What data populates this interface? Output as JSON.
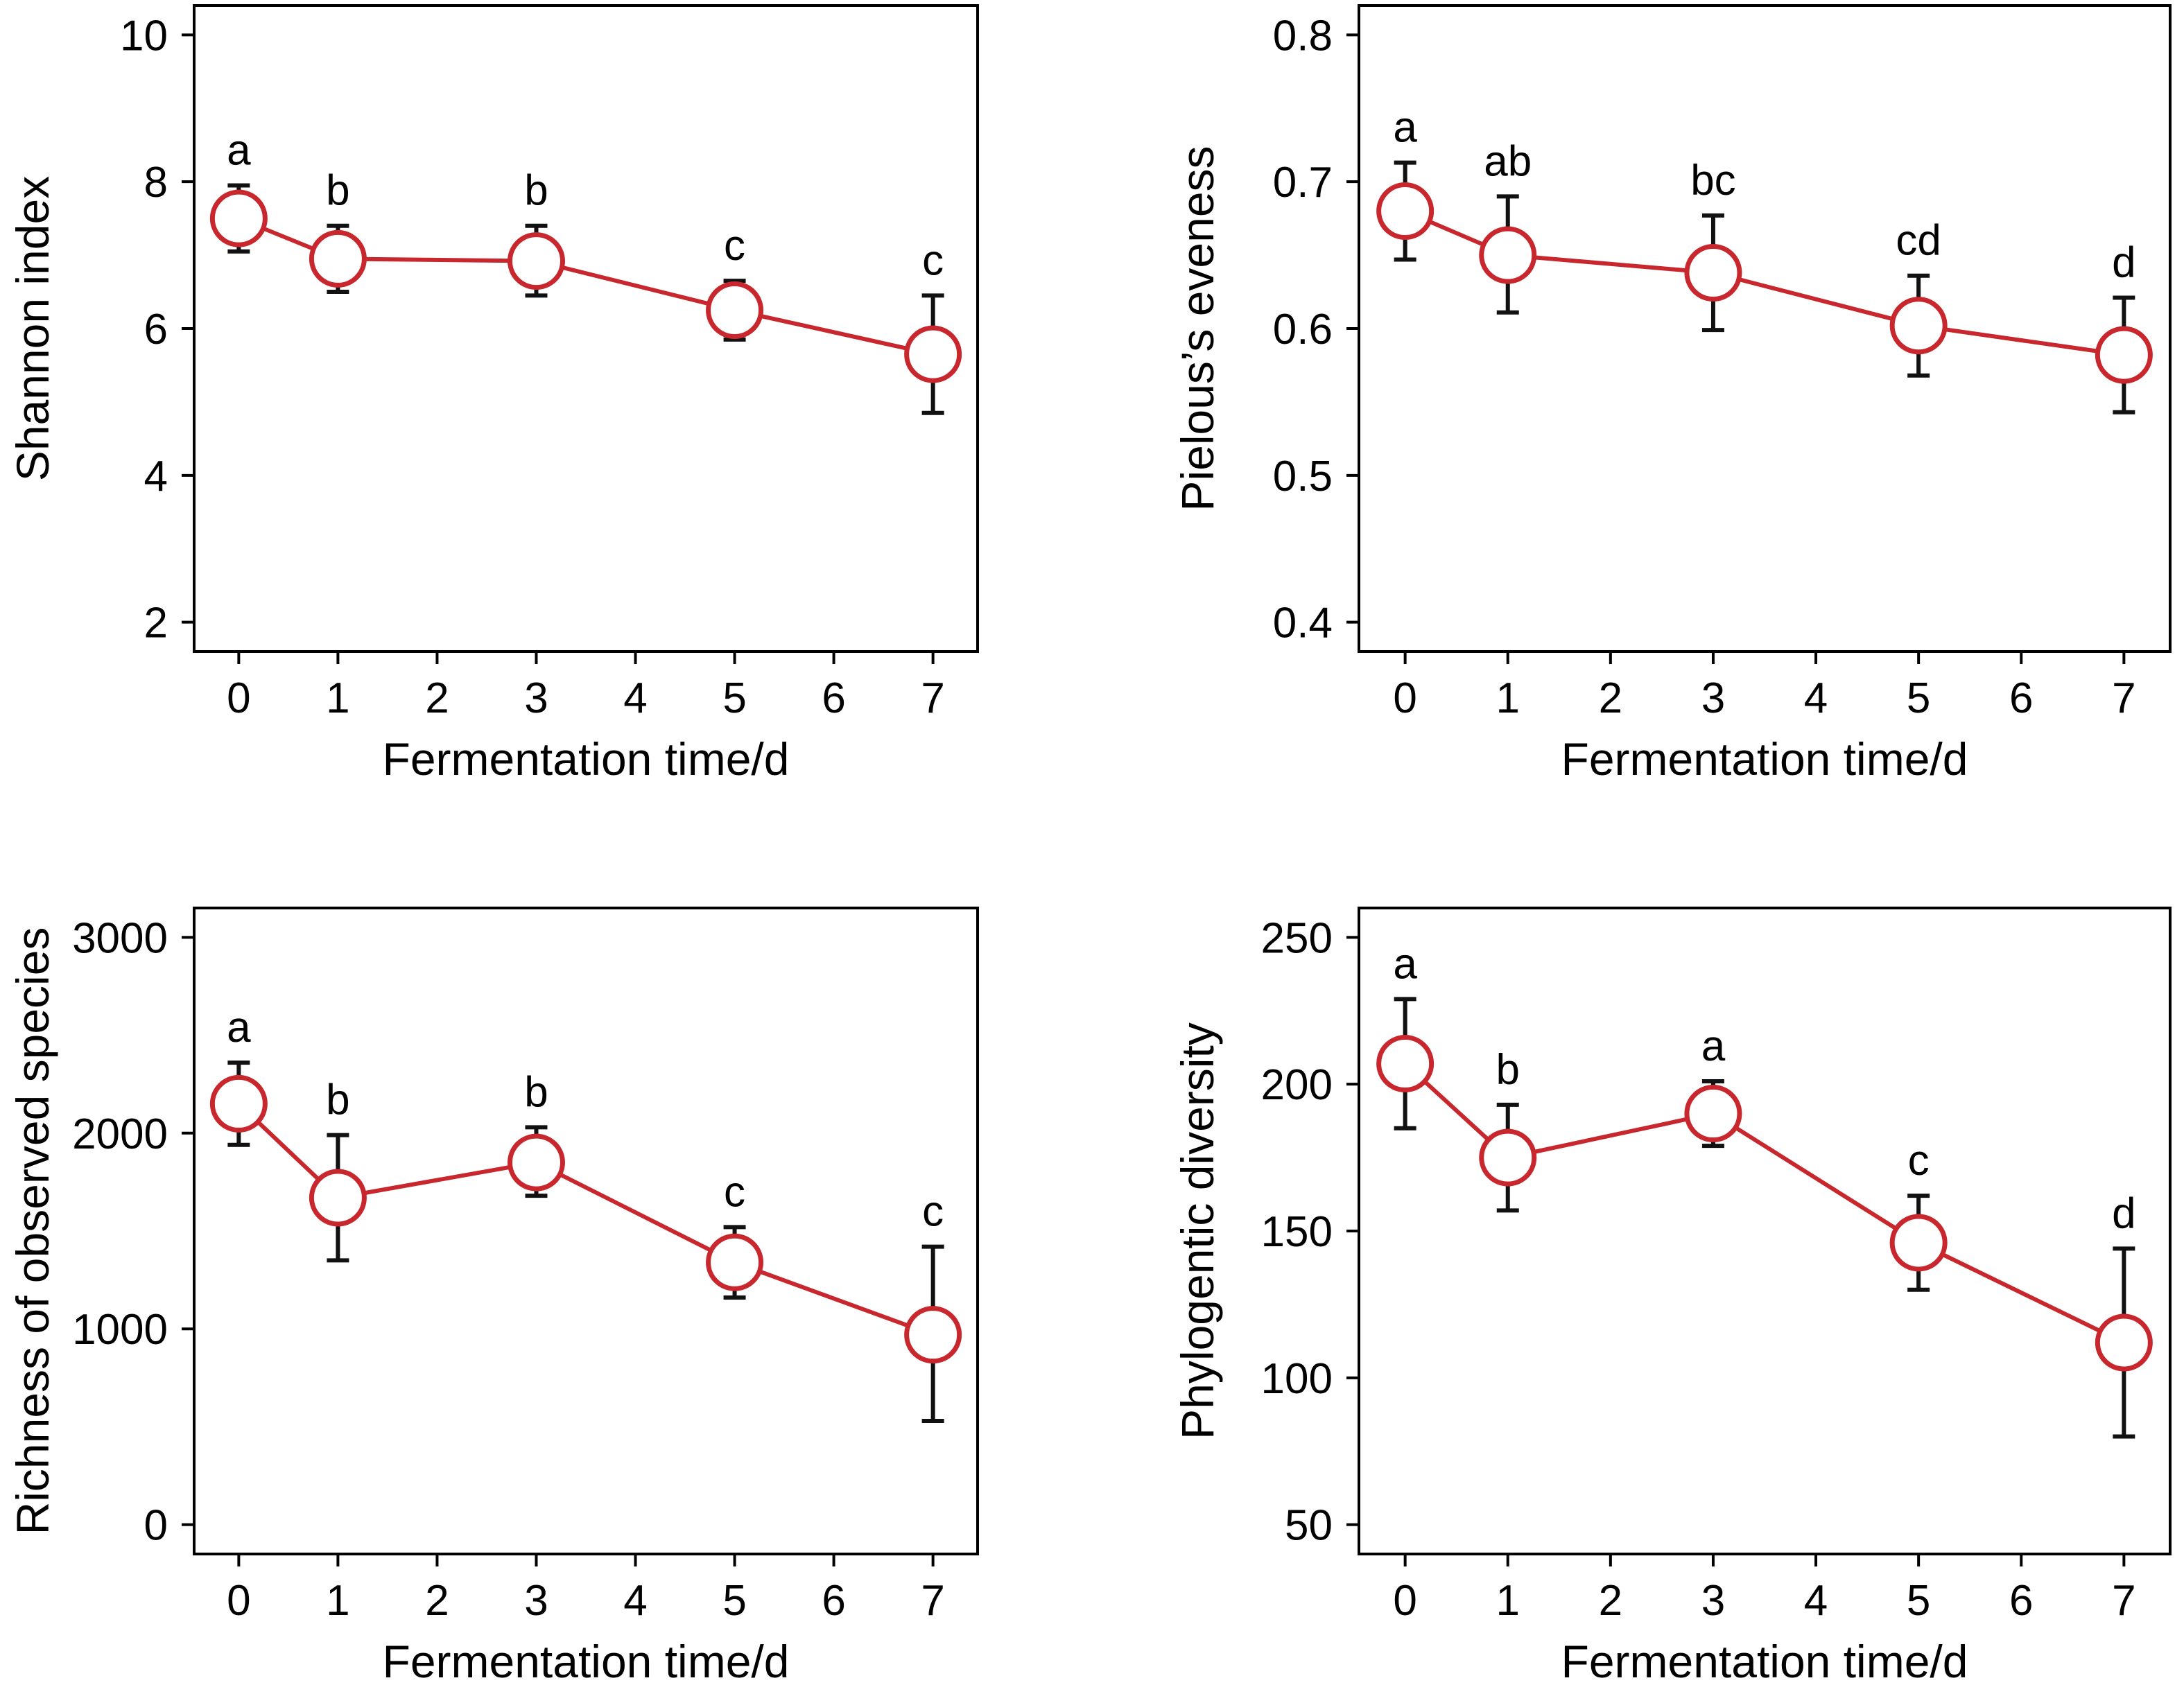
{
  "colors": {
    "line": "#c8282d",
    "marker_fill": "#ffffff",
    "errorbar": "#111111",
    "axis": "#000000"
  },
  "chart_data": [
    {
      "id": "shannon",
      "type": "line",
      "xlabel": "Fermentation time/d",
      "ylabel": "Shannon index",
      "xlim": [
        -0.45,
        7.45
      ],
      "ylim": [
        1.6,
        10.4
      ],
      "xticks": [
        0,
        1,
        2,
        3,
        4,
        5,
        6,
        7
      ],
      "yticks": [
        2,
        4,
        6,
        8,
        10
      ],
      "x": [
        0,
        1,
        3,
        5,
        7
      ],
      "y": [
        7.5,
        6.95,
        6.92,
        6.25,
        5.65
      ],
      "err_upper": [
        7.95,
        7.4,
        7.4,
        6.65,
        6.45
      ],
      "err_lower": [
        7.05,
        6.5,
        6.45,
        5.85,
        4.85
      ],
      "labels": [
        "a",
        "b",
        "b",
        "c",
        "c"
      ]
    },
    {
      "id": "pielou",
      "type": "line",
      "xlabel": "Fermentation time/d",
      "ylabel": "Pielous’s eveness",
      "xlim": [
        -0.45,
        7.45
      ],
      "ylim": [
        0.38,
        0.82
      ],
      "xticks": [
        0,
        1,
        2,
        3,
        4,
        5,
        6,
        7
      ],
      "yticks": [
        0.4,
        0.5,
        0.6,
        0.7,
        0.8
      ],
      "ytick_labels": [
        "0.4",
        "0.5",
        "0.6",
        "0.7",
        "0.8"
      ],
      "x": [
        0,
        1,
        3,
        5,
        7
      ],
      "y": [
        0.68,
        0.65,
        0.638,
        0.602,
        0.582
      ],
      "err_upper": [
        0.713,
        0.69,
        0.677,
        0.636,
        0.621
      ],
      "err_lower": [
        0.647,
        0.611,
        0.599,
        0.568,
        0.543
      ],
      "labels": [
        "a",
        "ab",
        "bc",
        "cd",
        "d"
      ]
    },
    {
      "id": "richness",
      "type": "line",
      "xlabel": "Fermentation time/d",
      "ylabel": "Richness of observed species",
      "xlim": [
        -0.45,
        7.45
      ],
      "ylim": [
        -150,
        3150
      ],
      "xticks": [
        0,
        1,
        2,
        3,
        4,
        5,
        6,
        7
      ],
      "yticks": [
        0,
        1000,
        2000,
        3000
      ],
      "x": [
        0,
        1,
        3,
        5,
        7
      ],
      "y": [
        2150,
        1670,
        1850,
        1340,
        970
      ],
      "err_upper": [
        2360,
        1990,
        2030,
        1520,
        1420
      ],
      "err_lower": [
        1940,
        1350,
        1680,
        1160,
        530
      ],
      "labels": [
        "a",
        "b",
        "b",
        "c",
        "c"
      ]
    },
    {
      "id": "pd",
      "type": "line",
      "xlabel": "Fermentation time/d",
      "ylabel": "Phylogentic diversity",
      "xlim": [
        -0.45,
        7.45
      ],
      "ylim": [
        40,
        260
      ],
      "xticks": [
        0,
        1,
        2,
        3,
        4,
        5,
        6,
        7
      ],
      "yticks": [
        50,
        100,
        150,
        200,
        250
      ],
      "x": [
        0,
        1,
        3,
        5,
        7
      ],
      "y": [
        207,
        175,
        190,
        146,
        112
      ],
      "err_upper": [
        229,
        193,
        201,
        162,
        144
      ],
      "err_lower": [
        185,
        157,
        179,
        130,
        80
      ],
      "labels": [
        "a",
        "b",
        "a",
        "c",
        "d"
      ]
    }
  ]
}
